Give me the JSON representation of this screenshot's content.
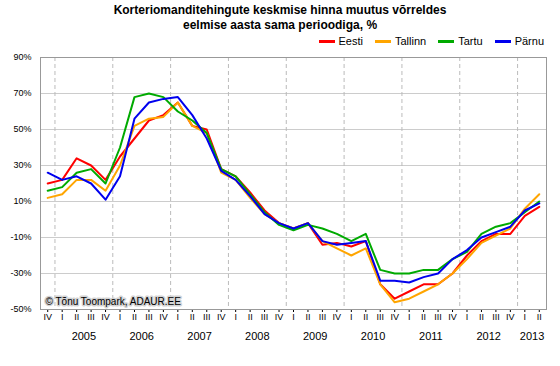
{
  "chart_data": {
    "type": "line",
    "title": "Korteriomanditehingute keskmise hinna muutus võrreldes\neelmise aasta sama perioodiga, %",
    "categories": [
      "IV",
      "I",
      "II",
      "III",
      "IV",
      "I",
      "II",
      "III",
      "IV",
      "I",
      "II",
      "III",
      "IV",
      "I",
      "II",
      "III",
      "IV",
      "I",
      "II",
      "III",
      "IV",
      "I",
      "II",
      "III",
      "IV",
      "I",
      "II",
      "III",
      "IV",
      "I",
      "II",
      "III",
      "IV",
      "I",
      "II"
    ],
    "years": [
      null,
      2005,
      2005,
      2005,
      2005,
      2006,
      2006,
      2006,
      2006,
      2007,
      2007,
      2007,
      2007,
      2008,
      2008,
      2008,
      2008,
      2009,
      2009,
      2009,
      2009,
      2010,
      2010,
      2010,
      2010,
      2011,
      2011,
      2011,
      2011,
      2012,
      2012,
      2012,
      2012,
      2013,
      2013
    ],
    "series": [
      {
        "name": "Eesti",
        "color": "#FF0000",
        "values": [
          20,
          22,
          34,
          30,
          22,
          35,
          45,
          55,
          58,
          65,
          52,
          50,
          28,
          24,
          15,
          5,
          -2,
          -5,
          -2,
          -14,
          -13,
          -15,
          -12,
          -36,
          -44,
          -40,
          -36,
          -36,
          -30,
          -20,
          -12,
          -8,
          -8,
          2,
          7
        ]
      },
      {
        "name": "Tallinn",
        "color": "#FFA500",
        "values": [
          12,
          14,
          22,
          22,
          16,
          30,
          52,
          56,
          57,
          65,
          52,
          48,
          26,
          22,
          12,
          3,
          -2,
          -5,
          -2,
          -12,
          -16,
          -20,
          -16,
          -36,
          -46,
          -44,
          -40,
          -36,
          -30,
          -22,
          -13,
          -9,
          -5,
          6,
          14
        ]
      },
      {
        "name": "Tartu",
        "color": "#00AA00",
        "values": [
          16,
          18,
          26,
          28,
          20,
          40,
          68,
          70,
          68,
          60,
          55,
          48,
          28,
          24,
          14,
          4,
          -3,
          -6,
          -3,
          -5,
          -8,
          -12,
          -8,
          -28,
          -30,
          -30,
          -28,
          -28,
          -22,
          -18,
          -8,
          -4,
          -2,
          4,
          10
        ]
      },
      {
        "name": "Pärnu",
        "color": "#0000EE",
        "values": [
          26,
          22,
          24,
          20,
          11,
          24,
          56,
          65,
          67,
          68,
          58,
          45,
          27,
          22,
          13,
          3,
          -2,
          -5,
          -2,
          -12,
          -14,
          -13,
          -12,
          -34,
          -34,
          -35,
          -32,
          -30,
          -22,
          -17,
          -10,
          -7,
          -4,
          5,
          9
        ]
      }
    ],
    "ylim": [
      -50,
      90
    ],
    "yticks": [
      {
        "value": -50,
        "label": "-50%"
      },
      {
        "value": -30,
        "label": "-30%"
      },
      {
        "value": -10,
        "label": "-10%"
      },
      {
        "value": 10,
        "label": "10%"
      },
      {
        "value": 30,
        "label": "30%"
      },
      {
        "value": 50,
        "label": "50%"
      },
      {
        "value": 70,
        "label": "70%"
      },
      {
        "value": 90,
        "label": "90%"
      }
    ],
    "annotations": [
      "© Tõnu Toompark, ADAUR.EE"
    ],
    "grid": true,
    "legend": "upper right"
  }
}
